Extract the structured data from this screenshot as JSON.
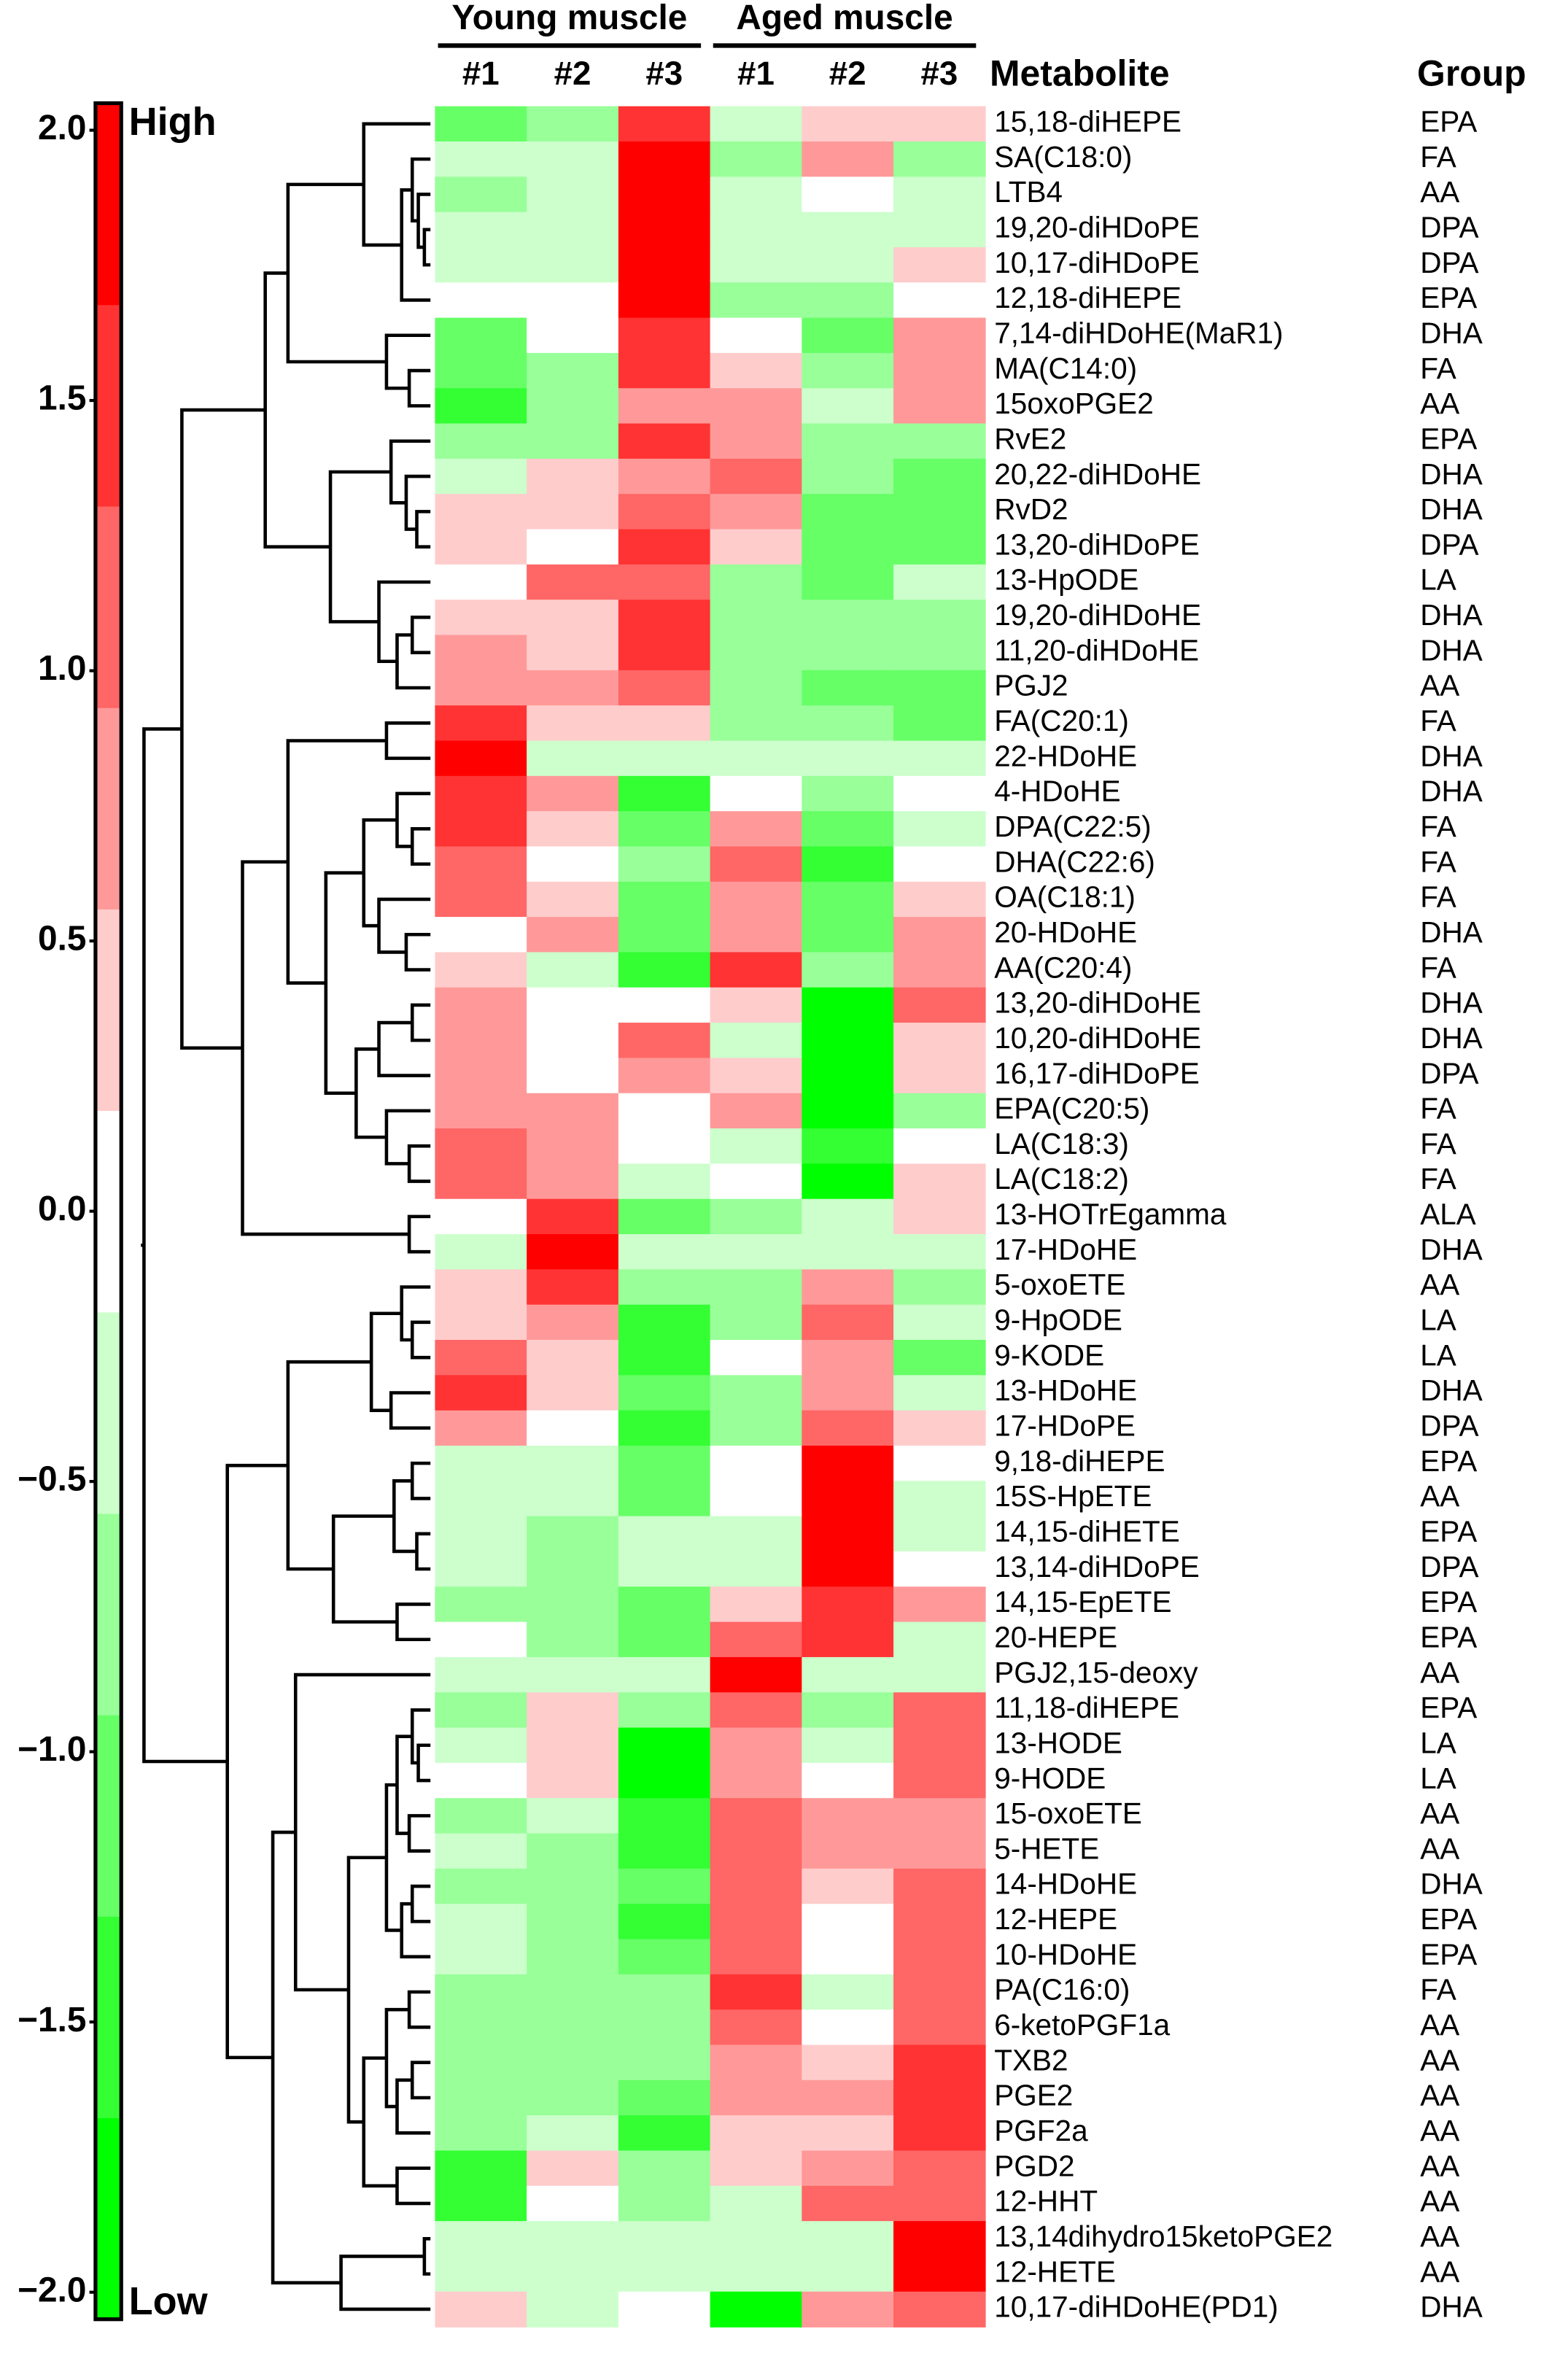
{
  "chart_data": {
    "type": "heatmap",
    "column_groups": [
      "Young muscle",
      "Aged muscle"
    ],
    "columns": [
      "#1",
      "#2",
      "#3",
      "#1",
      "#2",
      "#3"
    ],
    "row_label_title": "Metabolite",
    "group_title": "Group",
    "rows": [
      "15,18-diHEPE",
      "SA(C18:0)",
      "LTB4",
      "19,20-diHDoPE",
      "10,17-diHDoPE",
      "12,18-diHEPE",
      "7,14-diHDoHE(MaR1)",
      "MA(C14:0)",
      "15oxoPGE2",
      "RvE2",
      "20,22-diHDoHE",
      "RvD2",
      "13,20-diHDoPE",
      "13-HpODE",
      "19,20-diHDoHE",
      "11,20-diHDoHE",
      "PGJ2",
      "FA(C20:1)",
      "22-HDoHE",
      "4-HDoHE",
      "DPA(C22:5)",
      "DHA(C22:6)",
      "OA(C18:1)",
      "20-HDoHE",
      "AA(C20:4)",
      "13,20-diHDoHE",
      "10,20-diHDoHE",
      "16,17-diHDoPE",
      "EPA(C20:5)",
      "LA(C18:3)",
      "LA(C18:2)",
      "13-HOTrEgamma",
      "17-HDoHE",
      "5-oxoETE",
      "9-HpODE",
      "9-KODE",
      "13-HDoHE",
      "17-HDoPE",
      "9,18-diHEPE",
      "15S-HpETE",
      "14,15-diHETE",
      "13,14-diHDoPE",
      "14,15-EpETE",
      "20-HEPE",
      "PGJ2,15-deoxy",
      "11,18-diHEPE",
      "13-HODE",
      "9-HODE",
      "15-oxoETE",
      "5-HETE",
      "14-HDoHE",
      "12-HEPE",
      "10-HDoHE",
      "PA(C16:0)",
      "6-ketoPGF1a",
      "TXB2",
      "PGE2",
      "PGF2a",
      "PGD2",
      "12-HHT",
      "13,14dihydro15ketoPGE2",
      "12-HETE",
      "10,17-diHDoHE(PD1)"
    ],
    "groups": [
      "EPA",
      "FA",
      "AA",
      "DPA",
      "DPA",
      "EPA",
      "DHA",
      "FA",
      "AA",
      "EPA",
      "DHA",
      "DHA",
      "DPA",
      "LA",
      "DHA",
      "DHA",
      "AA",
      "FA",
      "DHA",
      "DHA",
      "FA",
      "FA",
      "FA",
      "DHA",
      "FA",
      "DHA",
      "DHA",
      "DPA",
      "FA",
      "FA",
      "FA",
      "ALA",
      "DHA",
      "AA",
      "LA",
      "LA",
      "DHA",
      "DPA",
      "EPA",
      "AA",
      "EPA",
      "DPA",
      "EPA",
      "EPA",
      "AA",
      "EPA",
      "LA",
      "LA",
      "AA",
      "AA",
      "DHA",
      "EPA",
      "EPA",
      "FA",
      "AA",
      "AA",
      "AA",
      "AA",
      "AA",
      "AA",
      "AA",
      "AA",
      "DHA"
    ],
    "values": [
      [
        -1.1,
        -0.75,
        1.5,
        -0.37,
        0.37,
        0.37
      ],
      [
        -0.37,
        -0.37,
        1.85,
        -0.75,
        0.75,
        -0.75
      ],
      [
        -0.75,
        -0.37,
        1.85,
        -0.37,
        0,
        -0.37
      ],
      [
        -0.37,
        -0.37,
        1.85,
        -0.37,
        -0.37,
        -0.37
      ],
      [
        -0.37,
        -0.37,
        1.85,
        -0.37,
        -0.37,
        0.37
      ],
      [
        0,
        0,
        1.85,
        -0.75,
        -0.75,
        0
      ],
      [
        -1.1,
        0,
        1.5,
        0,
        -1.1,
        0.75
      ],
      [
        -1.1,
        -0.75,
        1.5,
        0.37,
        -0.75,
        0.75
      ],
      [
        -1.5,
        -0.75,
        0.75,
        0.75,
        -0.37,
        0.75
      ],
      [
        -0.75,
        -0.75,
        1.5,
        0.75,
        -0.75,
        -0.75
      ],
      [
        -0.37,
        0.37,
        0.75,
        1.1,
        -0.75,
        -1.1
      ],
      [
        0.37,
        0.37,
        1.1,
        0.75,
        -1.1,
        -1.1
      ],
      [
        0.37,
        0,
        1.5,
        0.37,
        -1.1,
        -1.1
      ],
      [
        0,
        1.1,
        1.1,
        -0.75,
        -1.1,
        -0.37
      ],
      [
        0.37,
        0.37,
        1.5,
        -0.75,
        -0.75,
        -0.75
      ],
      [
        0.75,
        0.37,
        1.5,
        -0.75,
        -0.75,
        -0.75
      ],
      [
        0.75,
        0.75,
        1.1,
        -0.75,
        -1.1,
        -1.1
      ],
      [
        1.5,
        0.37,
        0.37,
        -0.75,
        -0.75,
        -1.1
      ],
      [
        1.85,
        -0.37,
        -0.37,
        -0.37,
        -0.37,
        -0.37
      ],
      [
        1.5,
        0.75,
        -1.5,
        0,
        -0.75,
        0
      ],
      [
        1.5,
        0.37,
        -1.1,
        0.75,
        -1.1,
        -0.37
      ],
      [
        1.1,
        0,
        -0.75,
        1.1,
        -1.5,
        0
      ],
      [
        1.1,
        0.37,
        -1.1,
        0.75,
        -1.1,
        0.37
      ],
      [
        0,
        0.75,
        -1.1,
        0.75,
        -1.1,
        0.75
      ],
      [
        0.37,
        -0.37,
        -1.5,
        1.5,
        -0.75,
        0.75
      ],
      [
        0.75,
        0,
        0,
        0.37,
        -1.85,
        1.1
      ],
      [
        0.75,
        0,
        1.1,
        -0.37,
        -1.85,
        0.37
      ],
      [
        0.75,
        0,
        0.75,
        0.37,
        -1.85,
        0.37
      ],
      [
        0.75,
        0.75,
        0,
        0.75,
        -1.85,
        -0.75
      ],
      [
        1.1,
        0.75,
        0,
        -0.37,
        -1.5,
        0
      ],
      [
        1.1,
        0.75,
        -0.37,
        0,
        -1.85,
        0.37
      ],
      [
        0,
        1.5,
        -1.1,
        -0.75,
        -0.37,
        0.37
      ],
      [
        -0.37,
        1.85,
        -0.37,
        -0.37,
        -0.37,
        -0.37
      ],
      [
        0.37,
        1.5,
        -0.75,
        -0.75,
        0.75,
        -0.75
      ],
      [
        0.37,
        0.75,
        -1.5,
        -0.75,
        1.1,
        -0.37
      ],
      [
        1.1,
        0.37,
        -1.5,
        0,
        0.75,
        -1.1
      ],
      [
        1.5,
        0.37,
        -1.1,
        -0.75,
        0.75,
        -0.37
      ],
      [
        0.75,
        0,
        -1.5,
        -0.75,
        1.1,
        0.37
      ],
      [
        -0.37,
        -0.37,
        -1.1,
        0,
        1.85,
        0
      ],
      [
        -0.37,
        -0.37,
        -1.1,
        0,
        1.85,
        -0.37
      ],
      [
        -0.37,
        -0.75,
        -0.37,
        -0.37,
        1.85,
        -0.37
      ],
      [
        -0.37,
        -0.75,
        -0.37,
        -0.37,
        1.85,
        0
      ],
      [
        -0.75,
        -0.75,
        -1.1,
        0.37,
        1.5,
        0.75
      ],
      [
        0,
        -0.75,
        -1.1,
        1.1,
        1.5,
        -0.37
      ],
      [
        -0.37,
        -0.37,
        -0.37,
        1.85,
        -0.37,
        -0.37
      ],
      [
        -0.75,
        0.37,
        -0.75,
        1.1,
        -0.75,
        1.1
      ],
      [
        -0.37,
        0.37,
        -1.85,
        0.75,
        -0.37,
        1.1
      ],
      [
        0,
        0.37,
        -1.85,
        0.75,
        0,
        1.1
      ],
      [
        -0.75,
        -0.37,
        -1.5,
        1.1,
        0.75,
        0.75
      ],
      [
        -0.37,
        -0.75,
        -1.5,
        1.1,
        0.75,
        0.75
      ],
      [
        -0.75,
        -0.75,
        -1.1,
        1.1,
        0.37,
        1.1
      ],
      [
        -0.37,
        -0.75,
        -1.5,
        1.1,
        0,
        1.1
      ],
      [
        -0.37,
        -0.75,
        -1.1,
        1.1,
        0,
        1.1
      ],
      [
        -0.75,
        -0.75,
        -0.75,
        1.5,
        -0.37,
        1.1
      ],
      [
        -0.75,
        -0.75,
        -0.75,
        1.1,
        0,
        1.1
      ],
      [
        -0.75,
        -0.75,
        -0.75,
        0.75,
        0.37,
        1.5
      ],
      [
        -0.75,
        -0.75,
        -1.1,
        0.75,
        0.75,
        1.5
      ],
      [
        -0.75,
        -0.37,
        -1.5,
        0.37,
        0.37,
        1.5
      ],
      [
        -1.5,
        0.37,
        -0.75,
        0.37,
        0.75,
        1.1
      ],
      [
        -1.5,
        0,
        -0.75,
        -0.37,
        1.1,
        1.1
      ],
      [
        -0.37,
        -0.37,
        -0.37,
        -0.37,
        -0.37,
        1.85
      ],
      [
        -0.37,
        -0.37,
        -0.37,
        -0.37,
        -0.37,
        1.85
      ],
      [
        0.37,
        -0.37,
        0,
        -1.85,
        0.75,
        1.1
      ]
    ],
    "colorscale": [
      "#00ff00",
      "#33ff33",
      "#66ff66",
      "#99ff99",
      "#ccffcc",
      "#ffffff",
      "#ffcccc",
      "#ff9999",
      "#ff6666",
      "#ff3333",
      "#ff0000"
    ],
    "zlim": [
      -2.05,
      2.05
    ],
    "zticks": [
      {
        "value": -2,
        "label": "−2.0"
      },
      {
        "value": -1.5,
        "label": "−1.5"
      },
      {
        "value": -1,
        "label": "−1.0"
      },
      {
        "value": -0.5,
        "label": "−0.5"
      },
      {
        "value": 0,
        "label": "0.0"
      },
      0.5,
      {
        "value": 1,
        "label": "1.0"
      },
      1.5,
      {
        "value": 2,
        "label": "2.0"
      }
    ],
    "colorbar_high": "High",
    "colorbar_low": "Low"
  }
}
